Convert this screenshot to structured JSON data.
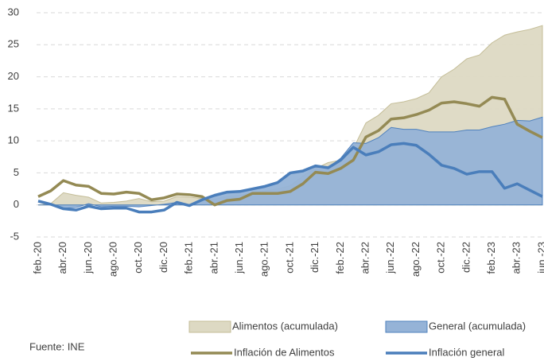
{
  "chart_data": {
    "type": "line",
    "categories": [
      "feb.-20",
      null,
      "abr.-20",
      null,
      "jun.-20",
      null,
      "ago.-20",
      null,
      "oct.-20",
      null,
      "dic.-20",
      null,
      "feb.-21",
      null,
      "abr.-21",
      null,
      "jun.-21",
      null,
      "ago.-21",
      null,
      "oct.-21",
      null,
      "dic.-21",
      null,
      "feb.-22",
      null,
      "abr.-22",
      null,
      "jun.-22",
      null,
      "ago.-22",
      null,
      "oct.-22",
      null,
      "dic.-22",
      null,
      "feb.-23",
      null,
      "abr.-23",
      null,
      "jun.-23"
    ],
    "series": [
      {
        "name": "Alimentos (acumulada)",
        "type": "area",
        "color": "#ddd9c3",
        "values": [
          0,
          0.2,
          1.9,
          1.5,
          1.2,
          0.3,
          0.4,
          0.6,
          1.0,
          0.5,
          0.6,
          1.3,
          1.2,
          1.0,
          0.9,
          1.3,
          1.5,
          1.9,
          2.2,
          2.5,
          3.0,
          4.5,
          5.7,
          6.6,
          7.0,
          8.8,
          12.8,
          14.0,
          15.8,
          16.1,
          16.6,
          17.5,
          20.0,
          21.2,
          22.8,
          23.4,
          25.3,
          26.5,
          27.0,
          27.4,
          28.0
        ]
      },
      {
        "name": "General (acumulada)",
        "type": "area",
        "color": "#95b3d7",
        "values": [
          0,
          0.0,
          -0.5,
          -0.4,
          0.2,
          -0.3,
          -0.2,
          -0.2,
          -0.3,
          -0.1,
          0.1,
          0.4,
          0.0,
          0.9,
          1.5,
          2.0,
          2.1,
          2.5,
          2.8,
          3.5,
          5.0,
          5.3,
          5.9,
          5.8,
          7.3,
          9.7,
          9.6,
          10.5,
          12.1,
          11.8,
          11.8,
          11.4,
          11.4,
          11.4,
          11.7,
          11.7,
          12.2,
          12.6,
          13.2,
          13.1,
          13.7
        ]
      },
      {
        "name": "Inflación de Alimentos",
        "type": "line",
        "color": "#948a54",
        "values": [
          1.3,
          2.2,
          3.8,
          3.1,
          2.9,
          1.8,
          1.7,
          2.0,
          1.8,
          0.8,
          1.1,
          1.7,
          1.6,
          1.3,
          0.0,
          0.7,
          0.9,
          1.8,
          1.8,
          1.8,
          2.1,
          3.3,
          5.1,
          4.9,
          5.7,
          7.0,
          10.6,
          11.6,
          13.4,
          13.6,
          14.1,
          14.8,
          15.9,
          16.1,
          15.8,
          15.4,
          16.8,
          16.5,
          12.6,
          11.5,
          10.5
        ]
      },
      {
        "name": "Inflación general",
        "type": "line",
        "color": "#4a7ebb",
        "values": [
          0.6,
          0.1,
          -0.6,
          -0.8,
          -0.2,
          -0.6,
          -0.5,
          -0.5,
          -1.1,
          -1.1,
          -0.8,
          0.4,
          -0.1,
          0.8,
          1.5,
          2.0,
          2.1,
          2.5,
          2.9,
          3.5,
          5.0,
          5.3,
          6.1,
          5.8,
          7.0,
          9.0,
          7.8,
          8.3,
          9.4,
          9.6,
          9.3,
          7.9,
          6.2,
          5.7,
          4.8,
          5.2,
          5.2,
          2.6,
          3.3,
          2.3,
          1.3
        ]
      }
    ],
    "ylim": [
      -5,
      30
    ],
    "yticks": [
      -5,
      0,
      5,
      10,
      15,
      20,
      25,
      30
    ],
    "grid": true,
    "source": "Fuente: INE"
  }
}
